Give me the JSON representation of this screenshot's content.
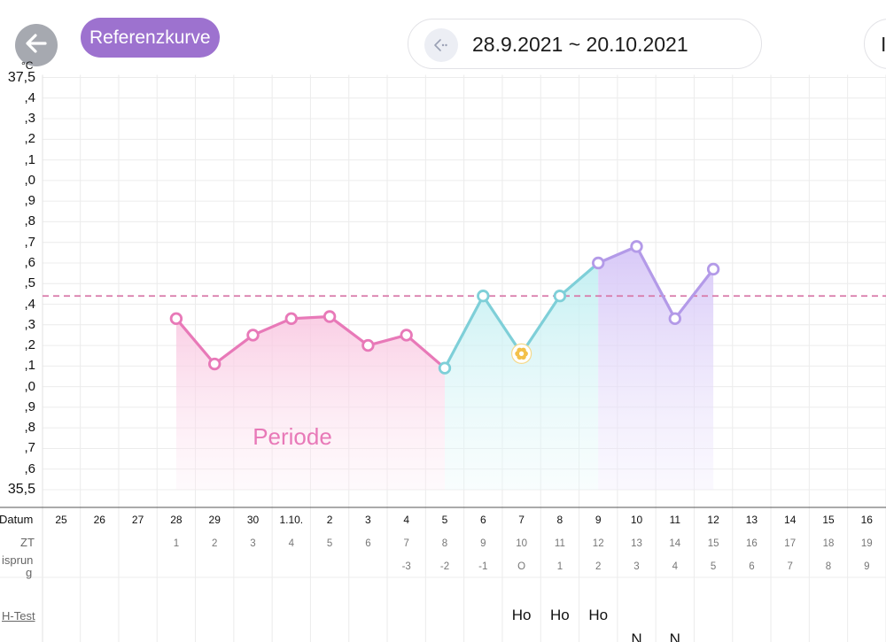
{
  "header": {
    "back_icon": "arrow-left-icon",
    "reference_button_label": "Referenzkurve",
    "date_range_icon": "range-arrow-icon",
    "date_range": "28.9.2021 ~ 20.10.2021",
    "right_button_label": "I"
  },
  "colors": {
    "pink": "#e879b8",
    "teal": "#7ecfd8",
    "purple": "#b39ae8",
    "reference_line": "#d878a8",
    "accent_button": "#9d72cf",
    "ovulation_marker": "#f3c04a"
  },
  "chart_data": {
    "type": "line",
    "y_unit": "°C",
    "y_labels": [
      "37,5",
      ",4",
      ",3",
      ",2",
      ",1",
      ",0",
      ",9",
      ",8",
      ",7",
      ",6",
      ",5",
      ",4",
      ",3",
      ",2",
      ",1",
      ",0",
      ",9",
      ",8",
      ",7",
      ",6",
      "35,5"
    ],
    "ylim": [
      35.5,
      37.5
    ],
    "grid": true,
    "reference_line": 36.44,
    "phase_label": "Periode",
    "dates": [
      "25",
      "26",
      "27",
      "28",
      "29",
      "30",
      "1.10.",
      "2",
      "3",
      "4",
      "5",
      "6",
      "7",
      "8",
      "9",
      "10",
      "11",
      "12",
      "13",
      "14",
      "15",
      "16"
    ],
    "cycle_days": [
      "",
      "",
      "",
      "1",
      "2",
      "3",
      "4",
      "5",
      "6",
      "7",
      "8",
      "9",
      "10",
      "11",
      "12",
      "13",
      "14",
      "15",
      "16",
      "17",
      "18",
      "19"
    ],
    "temp_shift": [
      "",
      "",
      "",
      "",
      "",
      "",
      "",
      "",
      "",
      "-3",
      "-2",
      "-1",
      "O",
      "1",
      "2",
      "3",
      "4",
      "5",
      "6",
      "7",
      "8",
      "9"
    ],
    "series": [
      {
        "phase": "period",
        "color": "#e879b8",
        "points": [
          {
            "date": "28",
            "value": 36.33
          },
          {
            "date": "29",
            "value": 36.11
          },
          {
            "date": "30",
            "value": 36.25
          },
          {
            "date": "1.10.",
            "value": 36.33
          },
          {
            "date": "2",
            "value": 36.34
          },
          {
            "date": "3",
            "value": 36.2
          },
          {
            "date": "4",
            "value": 36.25
          },
          {
            "date": "5",
            "value": 36.09
          }
        ]
      },
      {
        "phase": "fertile",
        "color": "#7ecfd8",
        "points": [
          {
            "date": "5",
            "value": 36.09
          },
          {
            "date": "6",
            "value": 36.44
          },
          {
            "date": "7",
            "value": 36.16,
            "marker": "ovulation"
          },
          {
            "date": "8",
            "value": 36.44
          },
          {
            "date": "9",
            "value": 36.6
          }
        ]
      },
      {
        "phase": "luteal",
        "color": "#b39ae8",
        "points": [
          {
            "date": "9",
            "value": 36.6
          },
          {
            "date": "10",
            "value": 36.68
          },
          {
            "date": "11",
            "value": 36.33
          },
          {
            "date": "12",
            "value": 36.57
          }
        ]
      }
    ]
  },
  "rows": {
    "date_label": "Datum",
    "cycle_label": "ZT",
    "shift_label_line1": "isprun",
    "shift_label_line2": "g",
    "lh_label": "H-Test",
    "lh_values": [
      {
        "date": "7",
        "text": "Ho"
      },
      {
        "date": "8",
        "text": "Ho"
      },
      {
        "date": "9",
        "text": "Ho"
      },
      {
        "date": "10",
        "text": "N"
      },
      {
        "date": "11",
        "text": "N"
      }
    ]
  }
}
